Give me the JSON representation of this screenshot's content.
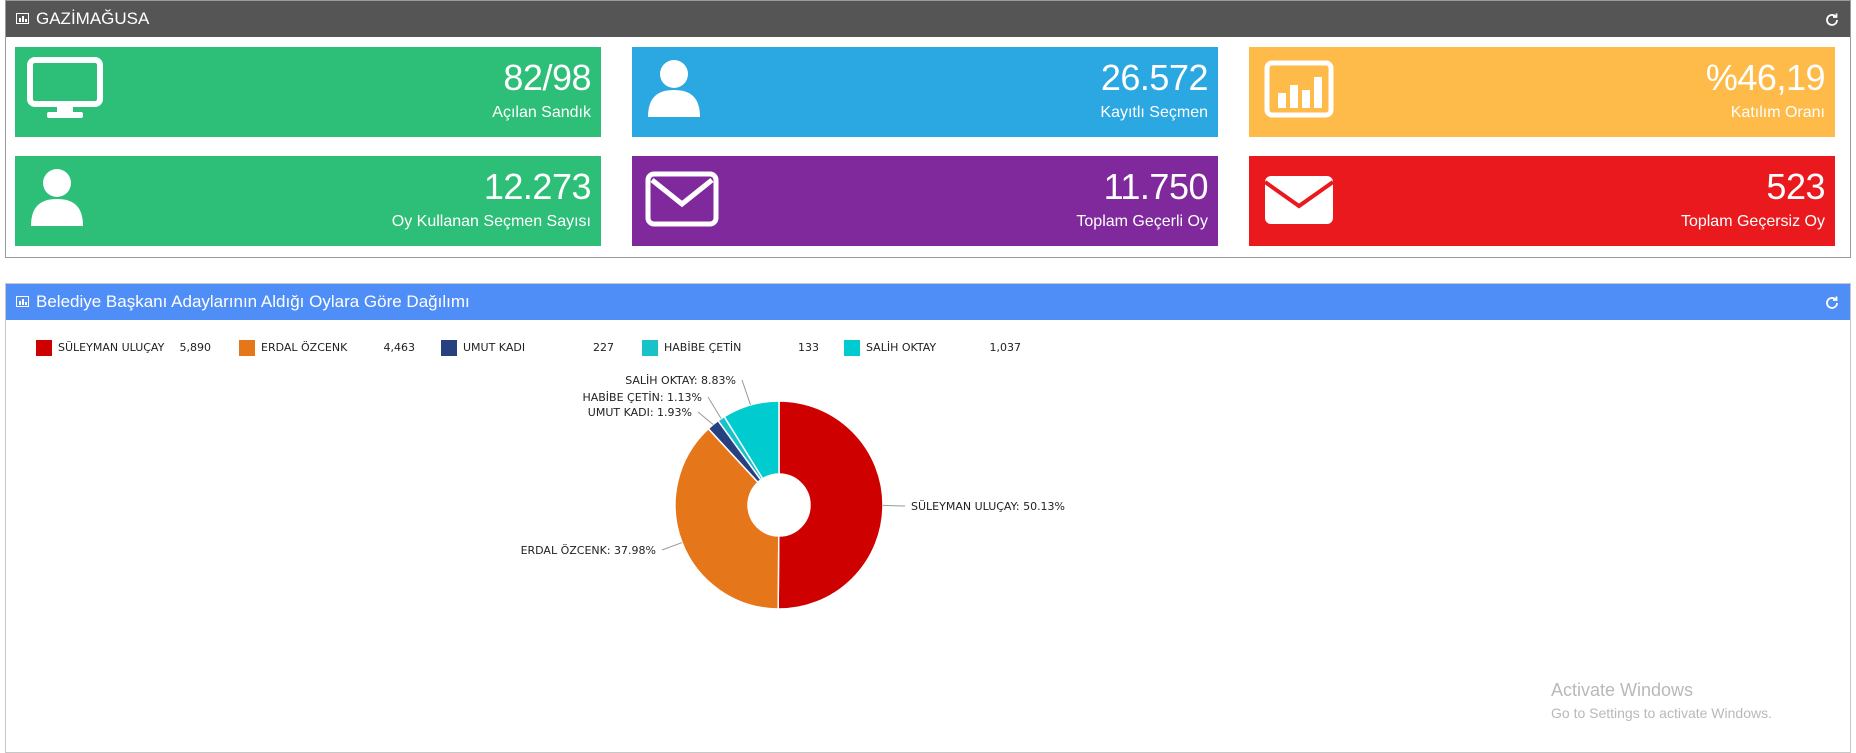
{
  "panel1": {
    "title": "GAZİMAĞUSA",
    "tiles": [
      {
        "value": "82/98",
        "label": "Açılan Sandık",
        "color": "#2dbe78",
        "icon": "monitor-icon"
      },
      {
        "value": "26.572",
        "label": "Kayıtlı Seçmen",
        "color": "#2ba8e2",
        "icon": "user-icon"
      },
      {
        "value": "%46,19",
        "label": "Katılım Oranı",
        "color": "#febb49",
        "icon": "bar-chart-icon"
      },
      {
        "value": "12.273",
        "label": "Oy Kullanan Seçmen Sayısı",
        "color": "#2dbe78",
        "icon": "user-icon"
      },
      {
        "value": "11.750",
        "label": "Toplam Geçerli Oy",
        "color": "#80299d",
        "icon": "envelope-outline-icon"
      },
      {
        "value": "523",
        "label": "Toplam Geçersiz Oy",
        "color": "#e9191e",
        "icon": "envelope-filled-icon"
      }
    ]
  },
  "panel2": {
    "title": "Belediye Başkanı Adaylarının Aldığı Oylara Göre Dağılımı"
  },
  "chart_data": {
    "type": "pie",
    "donut": true,
    "categories": [
      "SÜLEYMAN ULUÇAY",
      "ERDAL ÖZCENK",
      "UMUT KADI",
      "HABİBE ÇETİN",
      "SALİH OKTAY"
    ],
    "values": [
      5890,
      4463,
      227,
      133,
      1037
    ],
    "value_labels": [
      "5,890",
      "4,463",
      "227",
      "133",
      "1,037"
    ],
    "percent_labels": [
      "SÜLEYMAN ULUÇAY: 50.13%",
      "ERDAL ÖZCENK: 37.98%",
      "UMUT KADI: 1.93%",
      "HABİBE ÇETİN: 1.13%",
      "SALİH OKTAY: 8.83%"
    ],
    "colors": [
      "#cf0000",
      "#e5761a",
      "#27407f",
      "#17c3c9",
      "#00cbcf"
    ],
    "legend_position": "top-left"
  },
  "watermark": {
    "line1": "Activate Windows",
    "line2": "Go to Settings to activate Windows."
  }
}
